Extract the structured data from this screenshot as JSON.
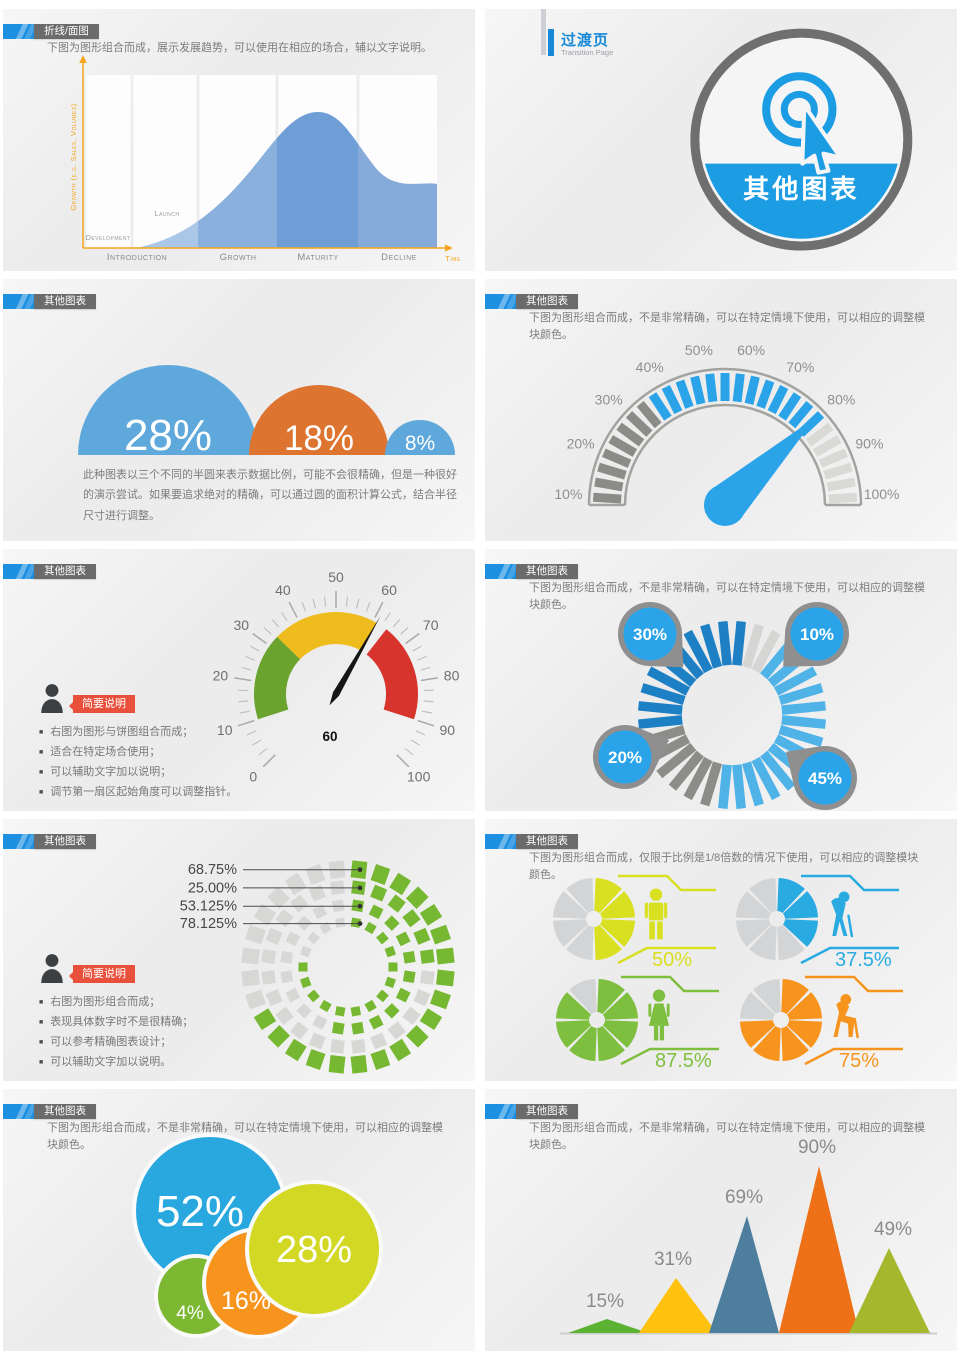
{
  "page": {
    "background": "#ffffff",
    "slide_background": "#f0f0f1"
  },
  "colors": {
    "accent_blue": "#1e90e2",
    "header_gray": "#6b6b6b",
    "text_gray": "#7c7c7c",
    "axis_orange": "#f5a51d",
    "note_red": "#e8503c",
    "note_dark": "#3c4043"
  },
  "slides": [
    {
      "id": "lifecycle",
      "header": "折线/面图",
      "desc": "下图为图形组合而成，展示发展趋势，可以使用在相应的场合，辅以文字说明。"
    },
    {
      "id": "transition",
      "title": "过渡页",
      "subtitle": "Transition Page",
      "badge": "其他图表"
    },
    {
      "id": "semicircles",
      "header": "其他图表",
      "desc": "此种图表以三个不同的半圆来表示数据比例，可能不会很精确，但是一种很好的演示尝试。如果要追求绝对的精确，可以通过圆的面积计算公式，结合半径尺寸进行调整。"
    },
    {
      "id": "gauge-percent",
      "header": "其他图表",
      "desc": "下图为图形组合而成，不是非常精确，可以在特定情境下使用，可以相应的调整模块颜色。"
    },
    {
      "id": "speedometer",
      "header": "其他图表",
      "notes_tag": "简要说明",
      "notes": [
        "右图为图形与饼图组合而成；",
        "适合在特定场合使用；",
        "可以辅助文字加以说明；",
        "调节第一扇区起始角度可以调整指针。"
      ]
    },
    {
      "id": "segmented-donut",
      "header": "其他图表",
      "desc": "下图为图形组合而成，不是非常精确，可以在特定情境下使用，可以相应的调整模块颜色。"
    },
    {
      "id": "concentric-rings",
      "header": "其他图表",
      "notes_tag": "简要说明",
      "notes": [
        "右图为图形组合而成；",
        "表现具体数字时不是很精确；",
        "可以参考精确图表设计；",
        "可以辅助文字加以说明。"
      ]
    },
    {
      "id": "pie-eighths",
      "header": "其他图表",
      "desc": "下图为图形组合而成，仅限于比例是1/8倍数的情况下使用，可以相应的调整模块颜色。"
    },
    {
      "id": "bubbles",
      "header": "其他图表",
      "desc": "下图为图形组合而成，不是非常精确，可以在特定情境下使用，可以相应的调整模块颜色。"
    },
    {
      "id": "triangles",
      "header": "其他图表",
      "desc": "下图为图形组合而成，不是非常精确，可以在特定情境下使用，可以相应的调整模块颜色。"
    }
  ],
  "chart_data": [
    {
      "slide": 0,
      "type": "area",
      "title": "Product life cycle curve",
      "stages": [
        "Introduction",
        "Growth",
        "Maturity",
        "Decline"
      ],
      "phase_labels": [
        "Development",
        "Launch"
      ],
      "ylabel": "Growth (e.g. Sales, Volumes)",
      "xlabel": "Time",
      "curve_pct": [
        [
          0,
          0
        ],
        [
          10,
          4
        ],
        [
          22,
          12
        ],
        [
          34,
          30
        ],
        [
          42,
          55
        ],
        [
          50,
          85
        ],
        [
          56,
          100
        ],
        [
          62,
          96
        ],
        [
          70,
          74
        ],
        [
          80,
          52
        ],
        [
          92,
          42
        ],
        [
          100,
          44
        ]
      ],
      "band_colors": [
        "#aac7e8",
        "#8ab1de",
        "#6f9ed6",
        "#86abdb"
      ],
      "axis_color": "#f5a51d"
    },
    {
      "slide": 1,
      "type": "transition",
      "badge": "其他图表",
      "icon": "click-target-cursor"
    },
    {
      "slide": 2,
      "type": "semicircle",
      "labels": [
        "28%",
        "18%",
        "8%"
      ],
      "values": [
        28,
        18,
        8
      ],
      "colors": [
        "#5fa8db",
        "#dd7430",
        "#5fa8db"
      ]
    },
    {
      "slide": 3,
      "type": "gauge",
      "range": [
        10,
        100
      ],
      "needle_value": 78,
      "tick_labels": [
        "10%",
        "20%",
        "30%",
        "40%",
        "50%",
        "60%",
        "70%",
        "80%",
        "90%",
        "100%"
      ],
      "segments": 27,
      "segment_split": {
        "dark": 8,
        "blue": 13,
        "light": 6
      },
      "colors": {
        "dark": "#8b8b87",
        "blue": "#2ba3e8",
        "light": "#d9d9d6",
        "needle": "#2ba3e8",
        "frame": "#a2a29e"
      }
    },
    {
      "slide": 4,
      "type": "gauge",
      "range": [
        0,
        100
      ],
      "needle_value": 60,
      "value_label": "60",
      "tick_labels": [
        "0",
        "10",
        "20",
        "30",
        "40",
        "50",
        "60",
        "70",
        "80",
        "90",
        "100"
      ],
      "bands": [
        {
          "from": 10,
          "to": 33,
          "color": "#6aa32e"
        },
        {
          "from": 33,
          "to": 61,
          "color": "#eebc1c"
        },
        {
          "from": 64,
          "to": 90,
          "color": "#d6342c"
        }
      ],
      "needle_color": "#151515"
    },
    {
      "slide": 5,
      "type": "donut-segmented",
      "slices": [
        {
          "label": "10%",
          "value": 10,
          "color": "#d5d5d3"
        },
        {
          "label": "45%",
          "value": 45,
          "color": "#4fb3e8"
        },
        {
          "label": "20%",
          "value": 20,
          "color": "#8c8c89"
        },
        {
          "label": "30%",
          "value": 30,
          "color": "#1d7fc4"
        }
      ],
      "callouts": [
        {
          "label": "30%"
        },
        {
          "label": "10%"
        },
        {
          "label": "20%"
        },
        {
          "label": "45%"
        }
      ],
      "callout_colors": {
        "pin": "#8f8f8f",
        "bubble": "#2aa3e8"
      }
    },
    {
      "slide": 6,
      "type": "concentric-rings",
      "rings": [
        {
          "label": "68.75%",
          "value": 68.75
        },
        {
          "label": "25.00%",
          "value": 25
        },
        {
          "label": "53.125%",
          "value": 53.125
        },
        {
          "label": "78.125%",
          "value": 78.125
        }
      ],
      "green": "#76b831",
      "gray": "#d7d7d5"
    },
    {
      "slide": 7,
      "type": "pie-eighths",
      "gray": "#d2d4d5",
      "items": [
        {
          "label": "50%",
          "value": 50,
          "eighths": 4,
          "color": "#d9e021",
          "icon": "adult-male"
        },
        {
          "label": "37.5%",
          "value": 37.5,
          "eighths": 3,
          "color": "#29abe2",
          "icon": "elderly-cane"
        },
        {
          "label": "87.5%",
          "value": 87.5,
          "eighths": 7,
          "color": "#7fbf3f",
          "icon": "adult-female"
        },
        {
          "label": "75%",
          "value": 75,
          "eighths": 6,
          "color": "#f7941e",
          "icon": "elderly-seated"
        }
      ]
    },
    {
      "slide": 8,
      "type": "bubble",
      "items": [
        {
          "label": "52%",
          "value": 52,
          "color": "#29a8e0"
        },
        {
          "label": "28%",
          "value": 28,
          "color": "#d3d824"
        },
        {
          "label": "16%",
          "value": 16,
          "color": "#f7941e"
        },
        {
          "label": "4%",
          "value": 4,
          "color": "#7cb832"
        }
      ]
    },
    {
      "slide": 9,
      "type": "triangle-peaks",
      "items": [
        {
          "label": "15%",
          "value": 15,
          "color": "#5cb233"
        },
        {
          "label": "31%",
          "value": 31,
          "color": "#ffc20e"
        },
        {
          "label": "69%",
          "value": 69,
          "color": "#4d7e9d"
        },
        {
          "label": "90%",
          "value": 90,
          "color": "#ee7118"
        },
        {
          "label": "49%",
          "value": 49,
          "color": "#a4b72d"
        }
      ]
    }
  ]
}
